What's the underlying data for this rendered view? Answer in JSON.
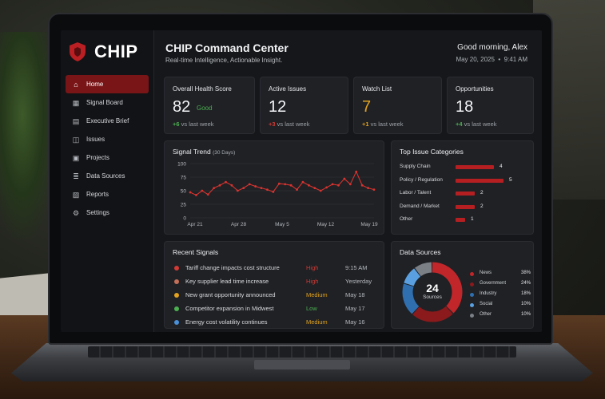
{
  "app": {
    "brand": "CHIP",
    "title": "CHIP Command Center",
    "subtitle": "Real-time Intelligence, Actionable Insight.",
    "greeting": "Good morning, Alex",
    "date": "May 20, 2025",
    "time": "9:41 AM"
  },
  "sidebar": {
    "items": [
      {
        "label": "Home",
        "icon": "home-icon",
        "active": true
      },
      {
        "label": "Signal Board",
        "icon": "signal-board-icon"
      },
      {
        "label": "Executive Brief",
        "icon": "document-icon"
      },
      {
        "label": "Issues",
        "icon": "issues-icon"
      },
      {
        "label": "Projects",
        "icon": "projects-icon"
      },
      {
        "label": "Data Sources",
        "icon": "database-icon"
      },
      {
        "label": "Reports",
        "icon": "reports-icon"
      },
      {
        "label": "Settings",
        "icon": "gear-icon"
      }
    ]
  },
  "kpis": [
    {
      "label": "Overall Health Score",
      "value": "82",
      "tag": "Good",
      "delta": "+6",
      "delta_text": "vs last week",
      "delta_color": "#4caf50"
    },
    {
      "label": "Active Issues",
      "value": "12",
      "delta": "+3",
      "delta_text": "vs last week",
      "delta_color": "#d13a35"
    },
    {
      "label": "Watch List",
      "value": "7",
      "value_color": "#e2a21e",
      "delta": "+1",
      "delta_text": "vs last week",
      "delta_color": "#e2a21e"
    },
    {
      "label": "Opportunities",
      "value": "18",
      "delta": "+4",
      "delta_text": "vs last week",
      "delta_color": "#4caf50"
    }
  ],
  "signal_trend": {
    "title": "Signal Trend",
    "period": "(30 Days)"
  },
  "chart_data": {
    "type": "line",
    "title": "Signal Trend (30 Days)",
    "ylim": [
      0,
      100
    ],
    "yticks": [
      "100",
      "75",
      "50",
      "25",
      "0"
    ],
    "xticks": [
      "Apr 21",
      "Apr 28",
      "May 5",
      "May 12",
      "May 19"
    ],
    "grid": true,
    "series": [
      {
        "color": "#d8332f",
        "values": [
          47,
          42,
          50,
          43,
          55,
          60,
          66,
          60,
          50,
          55,
          62,
          58,
          55,
          52,
          48,
          63,
          62,
          60,
          52,
          66,
          60,
          55,
          50,
          56,
          62,
          60,
          72,
          62,
          85,
          60,
          55,
          52
        ]
      }
    ]
  },
  "top_issues": {
    "title": "Top Issue Categories",
    "items": [
      {
        "label": "Supply Chain",
        "value": 4
      },
      {
        "label": "Policy / Regulation",
        "value": 5
      },
      {
        "label": "Labor / Talent",
        "value": 2
      },
      {
        "label": "Demand / Market",
        "value": 2
      },
      {
        "label": "Other",
        "value": 1
      }
    ]
  },
  "recent_signals": {
    "title": "Recent Signals",
    "items": [
      {
        "text": "Tariff change impacts cost structure",
        "severity": "High",
        "time": "9:15 AM",
        "dot": "#d13a35",
        "sev_color": "#d13a35"
      },
      {
        "text": "Key supplier lead time increase",
        "severity": "High",
        "time": "Yesterday",
        "dot": "#c46f5a",
        "sev_color": "#d13a35"
      },
      {
        "text": "New grant opportunity announced",
        "severity": "Medium",
        "time": "May 18",
        "dot": "#e2a21e",
        "sev_color": "#e2a21e"
      },
      {
        "text": "Competitor expansion in Midwest",
        "severity": "Low",
        "time": "May 17",
        "dot": "#4caf50",
        "sev_color": "#4caf50"
      },
      {
        "text": "Energy cost volatility continues",
        "severity": "Medium",
        "time": "May 16",
        "dot": "#4a90d9",
        "sev_color": "#e2a21e"
      }
    ]
  },
  "data_sources": {
    "title": "Data Sources",
    "total": "24",
    "total_label": "Sources",
    "items": [
      {
        "label": "News",
        "pct": "38%",
        "value": 38,
        "color": "#c0262a"
      },
      {
        "label": "Government",
        "pct": "24%",
        "value": 24,
        "color": "#8a1a1c"
      },
      {
        "label": "Industry",
        "pct": "18%",
        "value": 18,
        "color": "#2f6fb0"
      },
      {
        "label": "Social",
        "pct": "10%",
        "value": 10,
        "color": "#5aa0e0"
      },
      {
        "label": "Other",
        "pct": "10%",
        "value": 10,
        "color": "#7b7f86"
      }
    ]
  }
}
